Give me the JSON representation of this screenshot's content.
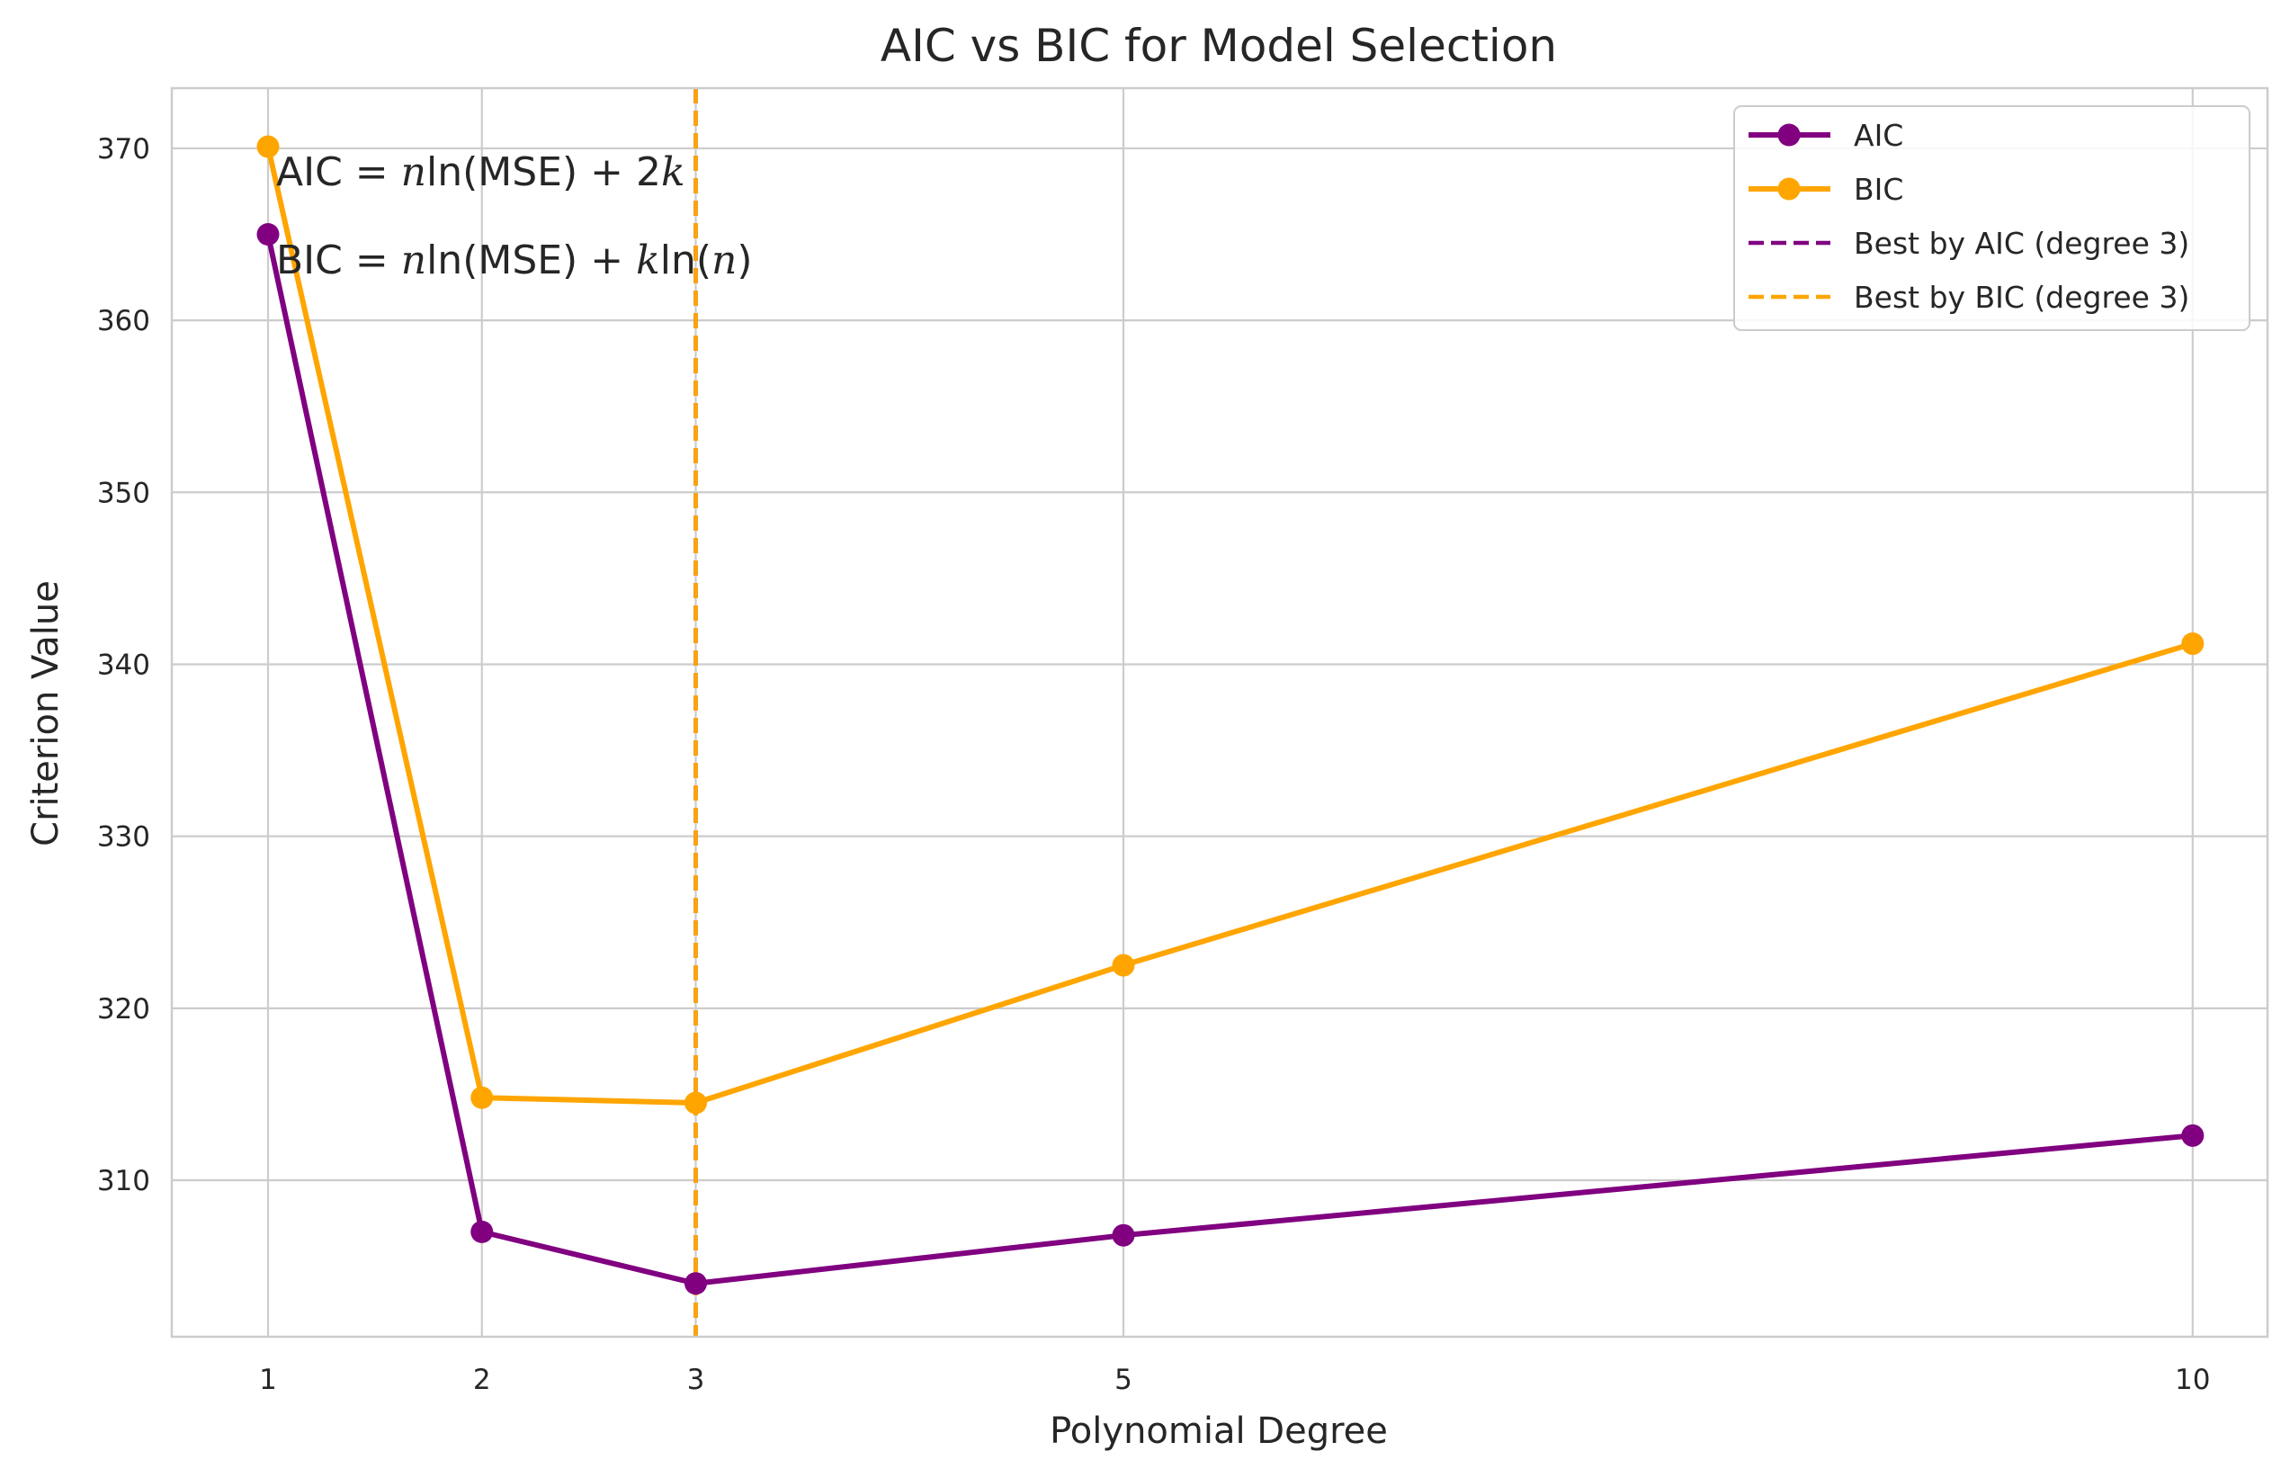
{
  "chart_data": {
    "type": "line",
    "title": "AIC vs BIC for Model Selection",
    "xlabel": "Polynomial Degree",
    "ylabel": "Criterion Value",
    "x": [
      1,
      2,
      3,
      5,
      10
    ],
    "xticks": [
      1,
      2,
      3,
      5,
      10
    ],
    "yticks": [
      310,
      320,
      330,
      340,
      350,
      360,
      370
    ],
    "xlim": [
      0.55,
      10.35
    ],
    "ylim": [
      300.9,
      373.5
    ],
    "grid": true,
    "legend_position": "top-right",
    "series": [
      {
        "name": "AIC",
        "values": [
          365.0,
          307.0,
          304.0,
          306.8,
          312.6
        ],
        "color": "#800080",
        "marker": "circle",
        "style": "solid"
      },
      {
        "name": "BIC",
        "values": [
          370.1,
          314.8,
          314.5,
          322.5,
          341.2
        ],
        "color": "#FFA500",
        "marker": "circle",
        "style": "solid"
      }
    ],
    "reference_lines": [
      {
        "name": "Best by AIC (degree 3)",
        "x": 3,
        "color": "#800080",
        "style": "dashed"
      },
      {
        "name": "Best by BIC (degree 3)",
        "x": 3,
        "color": "#FFA500",
        "style": "dashed"
      }
    ],
    "annotations": {
      "aic_formula": {
        "lhs": "AIC",
        "eq": " = ",
        "n": "n",
        "fn": "ln(MSE) + 2",
        "k": "k"
      },
      "bic_formula": {
        "lhs": "BIC",
        "eq": " = ",
        "n": "n",
        "fn": "ln(MSE) + ",
        "k": "k",
        "fn2": "ln(",
        "n2": "n",
        "close": ")"
      }
    }
  }
}
